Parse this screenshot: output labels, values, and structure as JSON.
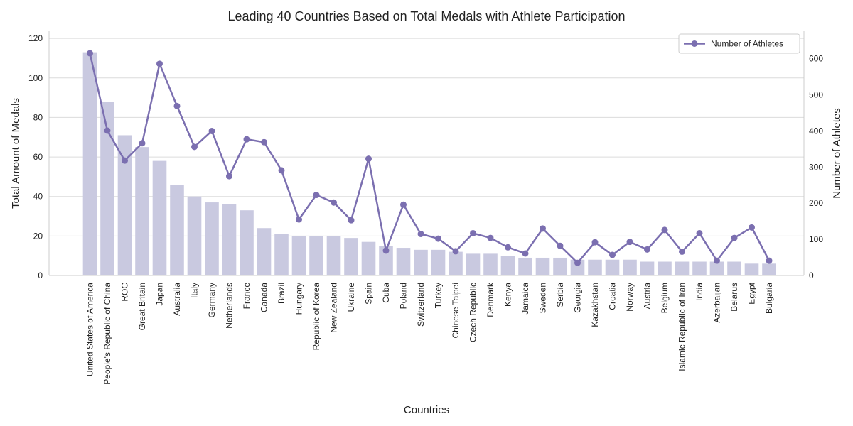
{
  "chart_data": {
    "type": "bar",
    "title": "Leading 40 Countries Based on Total Medals with Athlete Participation",
    "xlabel": "Countries",
    "ylabel": "Total Amount of Medals",
    "y2label": "Number of Athletes",
    "ylim": [
      0,
      124
    ],
    "y2lim": [
      0,
      678
    ],
    "yticks": [
      0,
      20,
      40,
      60,
      80,
      100,
      120
    ],
    "y2ticks": [
      0,
      100,
      200,
      300,
      400,
      500,
      600
    ],
    "grid": true,
    "legend_position": "top-right",
    "colors": {
      "bar": "#c9c9e0",
      "line": "#7b6fb0"
    },
    "categories": [
      "United States of America",
      "People's Republic of China",
      "ROC",
      "Great Britain",
      "Japan",
      "Australia",
      "Italy",
      "Germany",
      "Netherlands",
      "France",
      "Canada",
      "Brazil",
      "Hungary",
      "Republic of Korea",
      "New Zealand",
      "Ukraine",
      "Spain",
      "Cuba",
      "Poland",
      "Switzerland",
      "Turkey",
      "Chinese Taipei",
      "Czech Republic",
      "Denmark",
      "Kenya",
      "Jamaica",
      "Sweden",
      "Serbia",
      "Georgia",
      "Kazakhstan",
      "Croatia",
      "Norway",
      "Austria",
      "Belgium",
      "Islamic Republic of Iran",
      "India",
      "Azerbaijan",
      "Belarus",
      "Egypt",
      "Bulgaria"
    ],
    "series": [
      {
        "type": "bar",
        "axis": "left",
        "values": [
          113,
          88,
          71,
          65,
          58,
          46,
          40,
          37,
          36,
          33,
          24,
          21,
          20,
          20,
          20,
          19,
          17,
          15,
          14,
          13,
          13,
          12,
          11,
          11,
          10,
          9,
          9,
          9,
          8,
          8,
          8,
          8,
          7,
          7,
          7,
          7,
          7,
          7,
          6,
          6
        ]
      },
      {
        "type": "line",
        "axis": "right",
        "name": "Number of Athletes",
        "values": [
          615,
          401,
          318,
          366,
          586,
          469,
          356,
          400,
          275,
          377,
          369,
          291,
          155,
          223,
          202,
          153,
          323,
          69,
          196,
          115,
          102,
          67,
          117,
          104,
          78,
          61,
          130,
          82,
          35,
          92,
          57,
          93,
          72,
          126,
          66,
          117,
          41,
          104,
          133,
          41
        ]
      }
    ]
  }
}
